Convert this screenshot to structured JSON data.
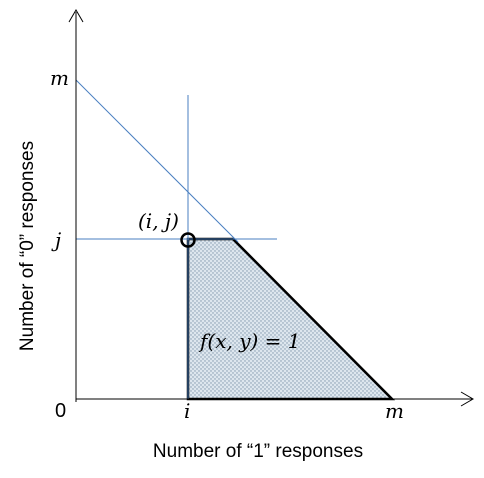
{
  "diagram": {
    "x_axis_title": "Number of “1” responses",
    "y_axis_title": "Number of “0” responses",
    "origin_label": "0",
    "x_ticks": [
      "i",
      "m"
    ],
    "y_ticks": [
      "j",
      "m"
    ],
    "point_label": "(i, j)",
    "region_label": "f(x, y) = 1",
    "colors": {
      "guide_lines": "#4a7fc1",
      "region_fill": "#d6e0ea",
      "region_stroke": "#000000",
      "axes": "#000000"
    }
  }
}
